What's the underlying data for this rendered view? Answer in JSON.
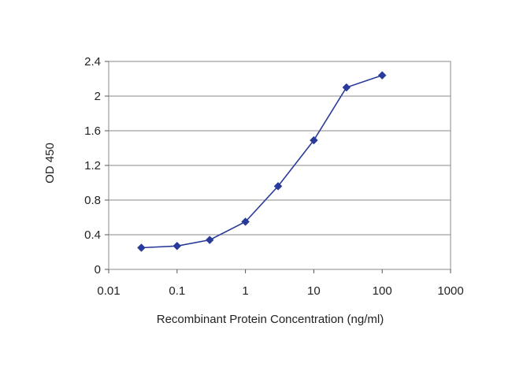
{
  "chart_data": {
    "type": "line",
    "title": "",
    "xlabel": "Recombinant Protein Concentration (ng/ml)",
    "ylabel": "OD 450",
    "x_scale": "log",
    "xlim": [
      0.01,
      1000
    ],
    "ylim": [
      0,
      2.4
    ],
    "x_ticks": [
      0.01,
      0.1,
      1,
      10,
      100,
      1000
    ],
    "x_tick_labels": [
      "0.01",
      "0.1",
      "1",
      "10",
      "100",
      "1000"
    ],
    "y_ticks": [
      0,
      0.4,
      0.8,
      1.2,
      1.6,
      2,
      2.4
    ],
    "y_tick_labels": [
      "0",
      "0.4",
      "0.8",
      "1.2",
      "1.6",
      "2",
      "2.4"
    ],
    "grid": "horizontal",
    "legend": "none",
    "series": [
      {
        "color": "#2a3a9a",
        "marker": "diamond",
        "x": [
          0.03,
          0.1,
          0.3,
          1,
          3,
          10,
          30,
          100
        ],
        "y": [
          0.25,
          0.27,
          0.34,
          0.55,
          0.96,
          1.49,
          2.1,
          2.24
        ]
      }
    ]
  }
}
